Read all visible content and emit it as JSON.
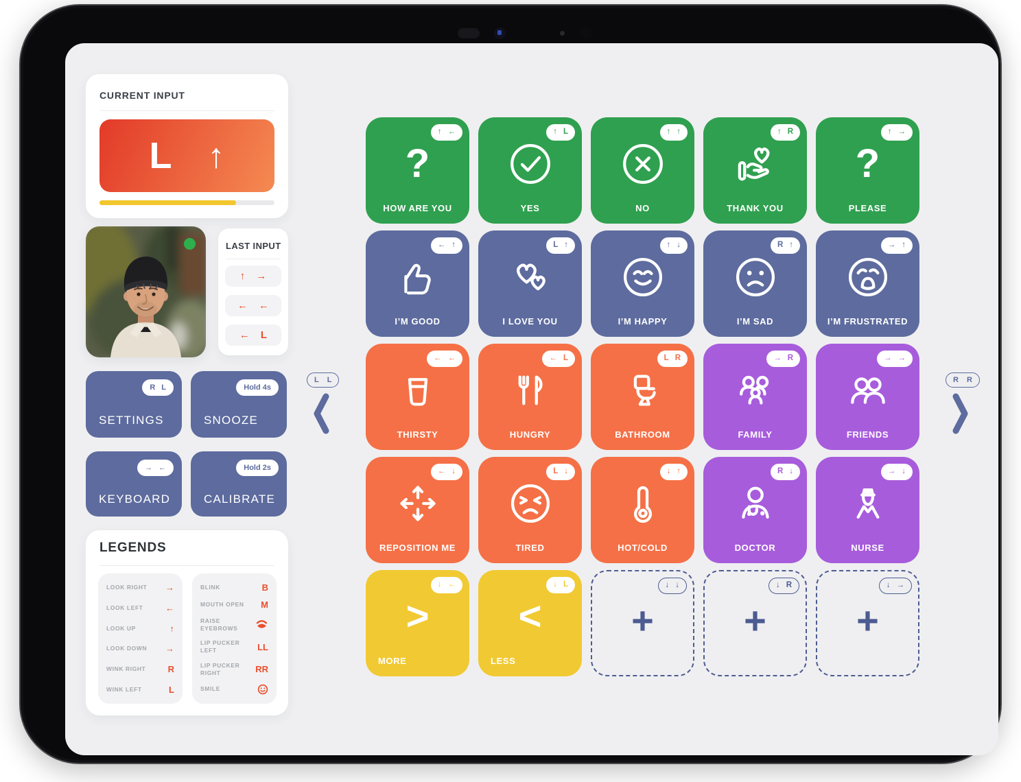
{
  "theme": {
    "green": "#2fa04f",
    "slate": "#5d6b9e",
    "orange": "#f57046",
    "purple": "#a75cdc",
    "yellow": "#f1c932",
    "accent": "#e8502e",
    "empty": "#4c5c92",
    "grad_from": "#e23a28",
    "grad_to": "#f58a52",
    "progress": "#f2c62e",
    "dot_green": "#2eaf4d"
  },
  "sidebar": {
    "current_input": {
      "title": "CURRENT INPUT",
      "keys": [
        "L",
        "↑"
      ],
      "progress_percent": 78
    },
    "webcam": {
      "status": "live"
    },
    "last_input": {
      "title": "LAST INPUT",
      "entries": [
        [
          "↑",
          "→"
        ],
        [
          "←",
          "←"
        ],
        [
          "←",
          "L"
        ]
      ]
    },
    "action_buttons": [
      {
        "label": "SETTINGS",
        "badge": [
          "R",
          "L"
        ]
      },
      {
        "label": "SNOOZE",
        "badge_text": "Hold 4s"
      },
      {
        "label": "KEYBOARD",
        "badge": [
          "→",
          "←"
        ]
      },
      {
        "label": "CALIBRATE",
        "badge_text": "Hold 2s"
      }
    ],
    "legends": {
      "title": "LEGENDS",
      "columns": [
        {
          "items": [
            {
              "label": "LOOK RIGHT",
              "glyph": "→"
            },
            {
              "label": "LOOK LEFT",
              "glyph": "←"
            },
            {
              "label": "LOOK UP",
              "glyph": "↑"
            },
            {
              "label": "LOOK DOWN",
              "glyph": "→"
            },
            {
              "label": "WINK RIGHT",
              "glyph": "R"
            },
            {
              "label": "WINK LEFT",
              "glyph": "L"
            }
          ]
        },
        {
          "items": [
            {
              "label": "BLINK",
              "glyph": "B"
            },
            {
              "label": "MOUTH OPEN",
              "glyph": "M"
            },
            {
              "label": "RAISE EYEBROWS",
              "glyph_icon": "eye"
            },
            {
              "label": "LIP PUCKER LEFT",
              "glyph": "LL"
            },
            {
              "label": "LIP PUCKER RIGHT",
              "glyph": "RR"
            },
            {
              "label": "SMILE",
              "glyph_icon": "smile"
            }
          ]
        }
      ]
    }
  },
  "nav": {
    "left": {
      "badge": [
        "L",
        "L"
      ]
    },
    "right": {
      "badge": [
        "R",
        "R"
      ]
    }
  },
  "grid": {
    "columns": 5,
    "tiles": [
      {
        "label": "HOW ARE YOU",
        "badge": [
          "↑",
          "←"
        ],
        "icon": "question",
        "color": "green"
      },
      {
        "label": "YES",
        "badge": [
          "↑",
          "L"
        ],
        "icon": "check-circle",
        "color": "green"
      },
      {
        "label": "NO",
        "badge": [
          "↑",
          "↑"
        ],
        "icon": "x-circle",
        "color": "green"
      },
      {
        "label": "THANK YOU",
        "badge": [
          "↑",
          "R"
        ],
        "icon": "hand-heart",
        "color": "green"
      },
      {
        "label": "PLEASE",
        "badge": [
          "↑",
          "→"
        ],
        "icon": "question",
        "color": "green"
      },
      {
        "label": "I’M GOOD",
        "badge": [
          "←",
          "↑"
        ],
        "icon": "thumbs-up",
        "color": "slate"
      },
      {
        "label": "I LOVE YOU",
        "badge": [
          "L",
          "↑"
        ],
        "icon": "hearts",
        "color": "slate"
      },
      {
        "label": "I’M HAPPY",
        "badge": [
          "↑",
          "↓"
        ],
        "icon": "happy-face",
        "color": "slate"
      },
      {
        "label": "I’M SAD",
        "badge": [
          "R",
          "↑"
        ],
        "icon": "sad-face",
        "color": "slate"
      },
      {
        "label": "I’M FRUSTRATED",
        "badge": [
          "→",
          "↑"
        ],
        "icon": "frustrated-face",
        "color": "slate"
      },
      {
        "label": "THIRSTY",
        "badge": [
          "←",
          "←"
        ],
        "icon": "glass",
        "color": "orange"
      },
      {
        "label": "HUNGRY",
        "badge": [
          "←",
          "L"
        ],
        "icon": "cutlery",
        "color": "orange"
      },
      {
        "label": "BATHROOM",
        "badge": [
          "L",
          "R"
        ],
        "icon": "toilet",
        "color": "orange"
      },
      {
        "label": "FAMILY",
        "badge": [
          "→",
          "R"
        ],
        "icon": "family",
        "color": "purple"
      },
      {
        "label": "FRIENDS",
        "badge": [
          "→",
          "→"
        ],
        "icon": "friends",
        "color": "purple"
      },
      {
        "label": "REPOSITION ME",
        "badge": [
          "←",
          "↓"
        ],
        "icon": "move-arrows",
        "color": "orange"
      },
      {
        "label": "TIRED",
        "badge": [
          "L",
          "↓"
        ],
        "icon": "tired-face",
        "color": "orange"
      },
      {
        "label": "HOT/COLD",
        "badge": [
          "↓",
          "↑"
        ],
        "icon": "thermometer",
        "color": "orange"
      },
      {
        "label": "DOCTOR",
        "badge": [
          "R",
          "↓"
        ],
        "icon": "doctor",
        "color": "purple"
      },
      {
        "label": "NURSE",
        "badge": [
          "→",
          "↓"
        ],
        "icon": "nurse",
        "color": "purple"
      },
      {
        "label": "MORE",
        "badge": [
          "↓",
          "←"
        ],
        "icon": "more",
        "color": "yellow",
        "label_align": "left"
      },
      {
        "label": "LESS",
        "badge": [
          "↓",
          "L"
        ],
        "icon": "less",
        "color": "yellow",
        "label_align": "left"
      },
      {
        "label": "",
        "badge": [
          "↓",
          "↓"
        ],
        "icon": "plus",
        "color": "empty"
      },
      {
        "label": "",
        "badge": [
          "↓",
          "R"
        ],
        "icon": "plus",
        "color": "empty"
      },
      {
        "label": "",
        "badge": [
          "↓",
          "→"
        ],
        "icon": "plus",
        "color": "empty"
      }
    ]
  }
}
